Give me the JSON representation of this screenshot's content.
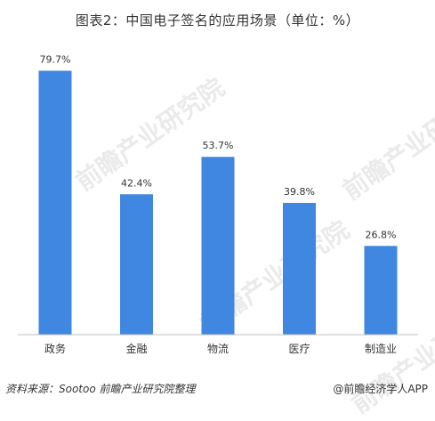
{
  "title": "图表2：中国电子签名的应用场景（单位：%）",
  "watermark": "前瞻产业研究院",
  "footer": {
    "source": "资料来源：Sootoo 前瞻产业研究院整理",
    "brand": "@前瞻经济学人APP"
  },
  "colors": {
    "bar": "#3f87e0",
    "axis": "#bfbfbf",
    "text": "#333333"
  },
  "chart_data": {
    "type": "bar",
    "categories": [
      "政务",
      "金融",
      "物流",
      "医疗",
      "制造业"
    ],
    "values": [
      79.7,
      42.4,
      53.7,
      39.8,
      26.8
    ],
    "value_labels": [
      "79.7%",
      "42.4%",
      "53.7%",
      "39.8%",
      "26.8%"
    ],
    "ylim": [
      0,
      90
    ],
    "grid": false,
    "legend": "none"
  }
}
